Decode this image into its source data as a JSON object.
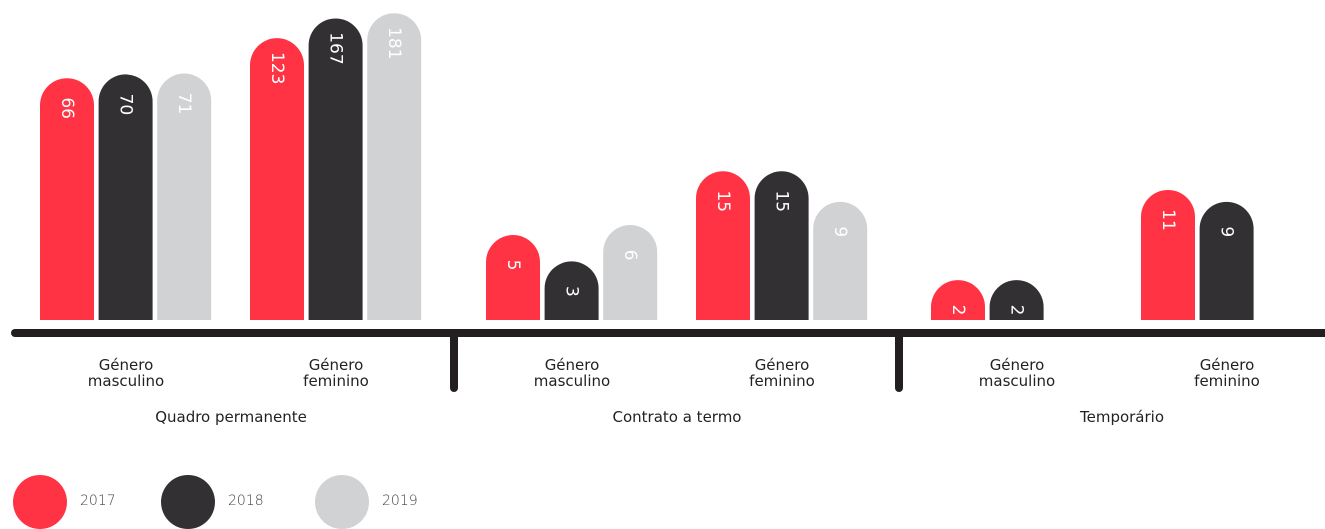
{
  "chart_data": {
    "type": "bar",
    "categories": [
      "Género masculino",
      "Género feminino",
      "Género masculino",
      "Género feminino",
      "Género masculino",
      "Género feminino"
    ],
    "groups": [
      "Quadro permanente",
      "Contrato a termo",
      "Temporário"
    ],
    "series": [
      {
        "name": "2017",
        "color": "#ff3344",
        "values": [
          66,
          123,
          5,
          15,
          2,
          11
        ]
      },
      {
        "name": "2018",
        "color": "#333033",
        "values": [
          70,
          167,
          3,
          15,
          2,
          9
        ]
      },
      {
        "name": "2019",
        "color": "#d1d2d4",
        "values": [
          71,
          181,
          6,
          9,
          null,
          null
        ]
      }
    ]
  }
}
